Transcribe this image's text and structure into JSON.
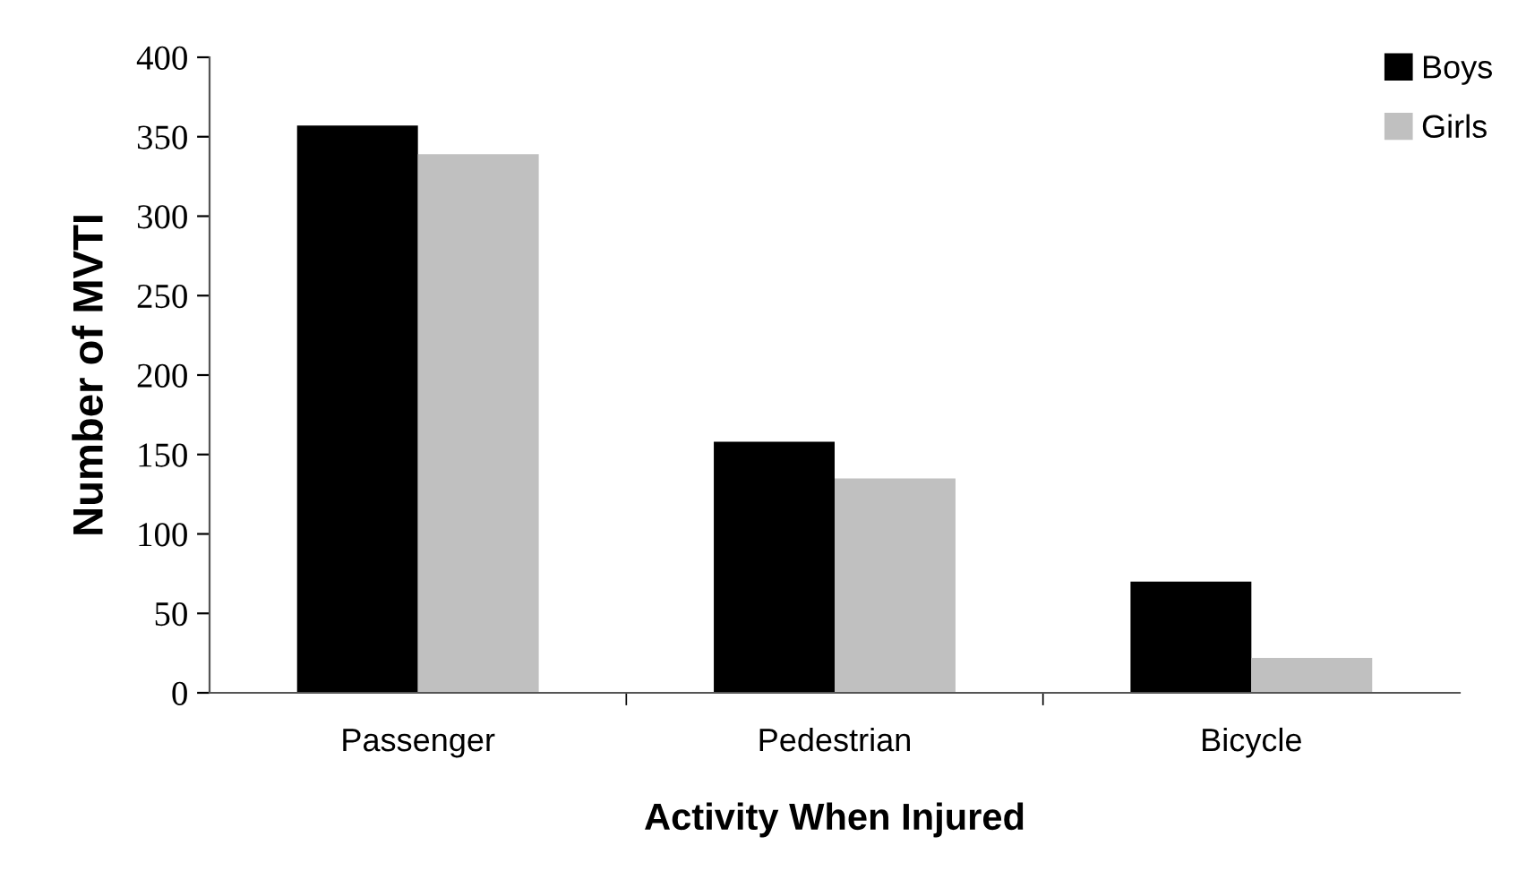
{
  "chart_data": {
    "type": "bar",
    "xlabel": "Activity When Injured",
    "ylabel": "Number of MVTI",
    "categories": [
      "Passenger",
      "Pedestrian",
      "Bicycle"
    ],
    "series": [
      {
        "name": "Boys",
        "color": "#000000",
        "values": [
          357,
          158,
          70
        ]
      },
      {
        "name": "Girls",
        "color": "#c0c0c0",
        "values": [
          339,
          135,
          22
        ]
      }
    ],
    "ylim": [
      0,
      400
    ],
    "yticks": [
      0,
      50,
      100,
      150,
      200,
      250,
      300,
      350,
      400
    ],
    "grid": false,
    "legend": "top right"
  }
}
